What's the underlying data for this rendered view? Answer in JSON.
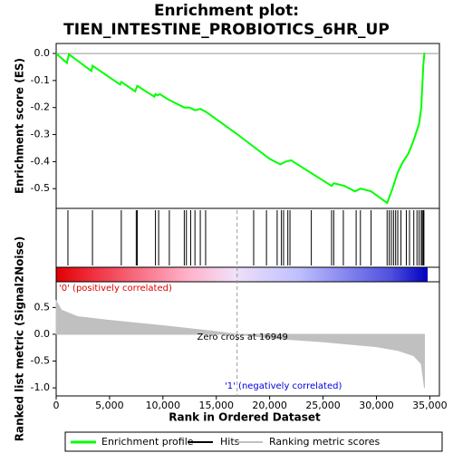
{
  "chart_data": [
    {
      "type": "line",
      "title": "Enrichment plot:",
      "subtitle": "TIEN_INTESTINE_PROBIOTICS_6HR_UP",
      "y_label": "Enrichment score (ES)",
      "xlim": [
        0,
        35900
      ],
      "ylim": [
        -0.573,
        0.037
      ],
      "yticks": [
        {
          "value": 0,
          "label": "0.0"
        },
        -0.1,
        -0.2,
        -0.3,
        -0.4,
        -0.5
      ],
      "series": [
        {
          "name": "Enrichment profile",
          "color": "#00ff00",
          "x": [
            0,
            1000,
            1200,
            3300,
            3400,
            6000,
            6100,
            7400,
            7600,
            9200,
            9300,
            9500,
            9700,
            10500,
            12000,
            12500,
            13000,
            13500,
            14000,
            17000,
            20000,
            21000,
            21500,
            22000,
            25800,
            26000,
            27000,
            28000,
            28500,
            29500,
            31000,
            31500,
            32000,
            32500,
            33000,
            33500,
            34000,
            34200,
            34300,
            34400,
            34500
          ],
          "values": [
            0.0,
            -0.035,
            -0.003,
            -0.065,
            -0.045,
            -0.115,
            -0.105,
            -0.14,
            -0.12,
            -0.16,
            -0.15,
            -0.155,
            -0.15,
            -0.17,
            -0.2,
            -0.2,
            -0.21,
            -0.205,
            -0.215,
            -0.3,
            -0.39,
            -0.41,
            -0.4,
            -0.395,
            -0.49,
            -0.48,
            -0.49,
            -0.51,
            -0.5,
            -0.51,
            -0.553,
            -0.5,
            -0.44,
            -0.4,
            -0.37,
            -0.32,
            -0.26,
            -0.2,
            -0.12,
            -0.04,
            0.003
          ]
        },
        {
          "name": "Hits",
          "color": "#000000",
          "x": [
            1100,
            3400,
            6100,
            7500,
            7600,
            9300,
            9600,
            10600,
            12000,
            12200,
            12600,
            13000,
            13500,
            14000,
            18500,
            19700,
            20700,
            21100,
            21300,
            21700,
            21900,
            23900,
            25800,
            26000,
            26900,
            28100,
            28500,
            29500,
            31000,
            31200,
            31400,
            31600,
            31800,
            32000,
            32300,
            32800,
            33100,
            33500,
            33800,
            34000,
            34200,
            34300,
            34400,
            34450
          ]
        }
      ]
    },
    {
      "type": "area",
      "x_label": "Rank in Ordered Dataset",
      "y_label": "Ranked list metric (Signal2Noise)",
      "annotations": [
        "'0' (positively correlated)",
        "Zero cross at 16949",
        "'1' (negatively correlated)"
      ],
      "zero_cross": 16949,
      "xlim": [
        0,
        35900
      ],
      "ylim": [
        -1.15,
        0.98
      ],
      "xticks": [
        0,
        {
          "value": 5000,
          "label": "5,000"
        },
        {
          "value": 10000,
          "label": "10,000"
        },
        {
          "value": 15000,
          "label": "15,000"
        },
        {
          "value": 20000,
          "label": "20,000"
        },
        {
          "value": 25000,
          "label": "25,000"
        },
        {
          "value": 30000,
          "label": "30,000"
        },
        {
          "value": 35000,
          "label": "35,000"
        }
      ],
      "yticks": [
        0.5,
        {
          "value": 0,
          "label": "0.0"
        },
        -0.5,
        {
          "value": -1,
          "label": "-1.0"
        }
      ],
      "series": [
        {
          "name": "Ranking metric scores",
          "color": "#c0c0c0",
          "x": [
            0,
            500,
            2000,
            5000,
            10000,
            15000,
            16949,
            20000,
            25000,
            30000,
            32000,
            33500,
            34200,
            34500
          ],
          "values": [
            0.62,
            0.45,
            0.33,
            0.26,
            0.16,
            0.05,
            0,
            -0.07,
            -0.14,
            -0.23,
            -0.3,
            -0.4,
            -0.55,
            -1.0
          ]
        }
      ]
    }
  ]
}
